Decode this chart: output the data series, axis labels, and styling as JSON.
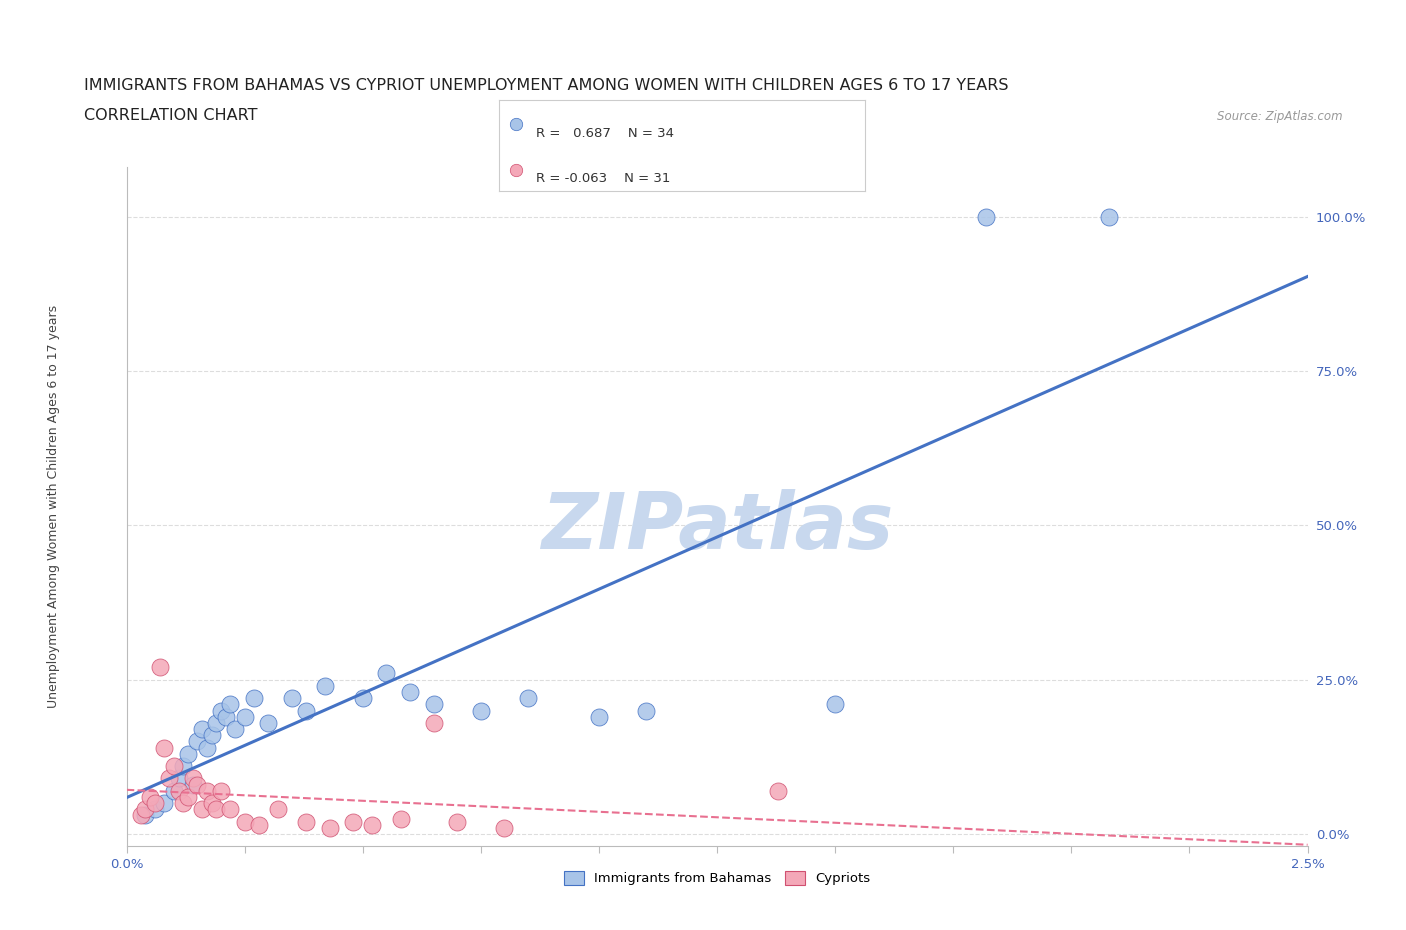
{
  "title1": "IMMIGRANTS FROM BAHAMAS VS CYPRIOT UNEMPLOYMENT AMONG WOMEN WITH CHILDREN AGES 6 TO 17 YEARS",
  "title2": "CORRELATION CHART",
  "source": "Source: ZipAtlas.com",
  "ylabel_label": "Unemployment Among Women with Children Ages 6 to 17 years",
  "ylabel_ticks": [
    0.0,
    25.0,
    50.0,
    75.0,
    100.0
  ],
  "ylabel_tick_labels": [
    "0.0%",
    "25.0%",
    "50.0%",
    "75.0%",
    "100.0%"
  ],
  "xlim": [
    0.0,
    2.5
  ],
  "ylim": [
    -2.0,
    108.0
  ],
  "blue_R": 0.687,
  "blue_N": 34,
  "pink_R": -0.063,
  "pink_N": 31,
  "blue_color": "#a8c4e8",
  "pink_color": "#f4a8b8",
  "blue_line_color": "#4472c4",
  "pink_line_color": "#e87090",
  "pink_edge_color": "#d05070",
  "watermark": "ZIPatlas",
  "watermark_color": "#c8d8ee",
  "legend_label_blue": "Immigrants from Bahamas",
  "legend_label_pink": "Cypriots",
  "blue_scatter_x": [
    0.04,
    0.06,
    0.08,
    0.1,
    0.11,
    0.12,
    0.13,
    0.14,
    0.15,
    0.16,
    0.17,
    0.18,
    0.19,
    0.2,
    0.21,
    0.22,
    0.23,
    0.25,
    0.27,
    0.3,
    0.35,
    0.38,
    0.42,
    0.5,
    0.55,
    0.6,
    0.65,
    0.75,
    0.85,
    1.0,
    1.1,
    1.5,
    1.82,
    2.08
  ],
  "blue_scatter_y": [
    3.0,
    4.0,
    5.0,
    7.0,
    9.0,
    11.0,
    13.0,
    8.0,
    15.0,
    17.0,
    14.0,
    16.0,
    18.0,
    20.0,
    19.0,
    21.0,
    17.0,
    19.0,
    22.0,
    18.0,
    22.0,
    20.0,
    24.0,
    22.0,
    26.0,
    23.0,
    21.0,
    20.0,
    22.0,
    19.0,
    20.0,
    21.0,
    100.0,
    100.0
  ],
  "pink_scatter_x": [
    0.03,
    0.04,
    0.05,
    0.06,
    0.07,
    0.08,
    0.09,
    0.1,
    0.11,
    0.12,
    0.13,
    0.14,
    0.15,
    0.16,
    0.17,
    0.18,
    0.19,
    0.2,
    0.22,
    0.25,
    0.28,
    0.32,
    0.38,
    0.43,
    0.48,
    0.52,
    0.58,
    0.65,
    0.7,
    0.8,
    1.38
  ],
  "pink_scatter_y": [
    3.0,
    4.0,
    6.0,
    5.0,
    27.0,
    14.0,
    9.0,
    11.0,
    7.0,
    5.0,
    6.0,
    9.0,
    8.0,
    4.0,
    7.0,
    5.0,
    4.0,
    7.0,
    4.0,
    2.0,
    1.5,
    4.0,
    2.0,
    1.0,
    2.0,
    1.5,
    2.5,
    18.0,
    2.0,
    1.0,
    7.0
  ],
  "grid_color": "#dddddd",
  "bg_color": "#ffffff",
  "title_fontsize": 11.5,
  "axis_fontsize": 9,
  "tick_fontsize": 9.5
}
